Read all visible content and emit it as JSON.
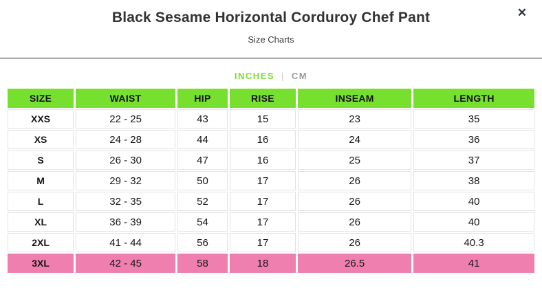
{
  "modal": {
    "title": "Black Sesame Horizontal Corduroy Chef Pant",
    "subtitle": "Size Charts",
    "close_icon": "✕"
  },
  "unit_toggle": {
    "divider": "|",
    "options": [
      {
        "label": "INCHES",
        "active": true
      },
      {
        "label": "CM",
        "active": false
      }
    ]
  },
  "colors": {
    "accent_green": "#77e02e",
    "highlight_pink": "#ef7fae",
    "inactive_gray": "#9b9b9b"
  },
  "size_table": {
    "headers": [
      "SIZE",
      "WAIST",
      "HIP",
      "RISE",
      "INSEAM",
      "LENGTH"
    ],
    "rows": [
      {
        "highlight": false,
        "cells": [
          "XXS",
          "22 - 25",
          "43",
          "15",
          "23",
          "35"
        ]
      },
      {
        "highlight": false,
        "cells": [
          "XS",
          "24 - 28",
          "44",
          "16",
          "24",
          "36"
        ]
      },
      {
        "highlight": false,
        "cells": [
          "S",
          "26 - 30",
          "47",
          "16",
          "25",
          "37"
        ]
      },
      {
        "highlight": false,
        "cells": [
          "M",
          "29 - 32",
          "50",
          "17",
          "26",
          "38"
        ]
      },
      {
        "highlight": false,
        "cells": [
          "L",
          "32 - 35",
          "52",
          "17",
          "26",
          "40"
        ]
      },
      {
        "highlight": false,
        "cells": [
          "XL",
          "36 - 39",
          "54",
          "17",
          "26",
          "40"
        ]
      },
      {
        "highlight": false,
        "cells": [
          "2XL",
          "41 - 44",
          "56",
          "17",
          "26",
          "40.3"
        ]
      },
      {
        "highlight": true,
        "cells": [
          "3XL",
          "42 - 45",
          "58",
          "18",
          "26.5",
          "41"
        ]
      }
    ]
  }
}
